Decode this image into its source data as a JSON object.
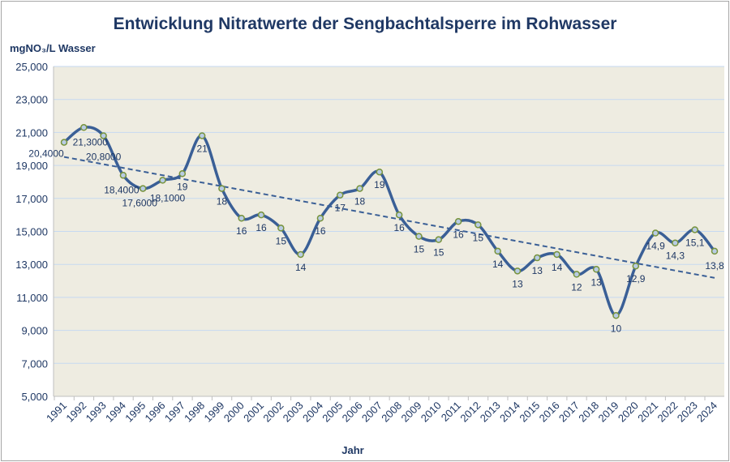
{
  "chart_data": {
    "type": "line",
    "title": "Entwicklung Nitratwerte der Sengbachtalsperre im Rohwasser",
    "ylabel": "mgNO₃/L Wasser",
    "xlabel": "Jahr",
    "ylim": [
      5000,
      25000
    ],
    "yticks": [
      "5,000",
      "7,000",
      "9,000",
      "11,000",
      "13,000",
      "15,000",
      "17,000",
      "19,000",
      "21,000",
      "23,000",
      "25,000"
    ],
    "grid": true,
    "smoothed": true,
    "trendline": "linear",
    "x": [
      "1991",
      "1992",
      "1993",
      "1994",
      "1995",
      "1996",
      "1997",
      "1998",
      "1999",
      "2000",
      "2001",
      "2002",
      "2003",
      "2004",
      "2005",
      "2006",
      "2007",
      "2008",
      "2009",
      "2010",
      "2011",
      "2012",
      "2013",
      "2014",
      "2015",
      "2016",
      "2017",
      "2018",
      "2019",
      "2020",
      "2021",
      "2022",
      "2023",
      "2024"
    ],
    "series": [
      {
        "values": [
          20400,
          21300,
          20800,
          18400,
          17600,
          18100,
          18500,
          20800,
          17600,
          15800,
          16000,
          15200,
          13600,
          15800,
          17200,
          17600,
          18600,
          16000,
          14700,
          14500,
          15600,
          15400,
          13800,
          12600,
          13400,
          13600,
          12400,
          12700,
          9900,
          12900,
          14900,
          14300,
          15100,
          13800
        ],
        "labels": [
          "20,4000",
          "21,3000",
          "20,8000",
          "18,4000",
          "17,6000",
          "18,1000",
          "19",
          "21",
          "18",
          "16",
          "16",
          "15",
          "14",
          "16",
          "17",
          "18",
          "19",
          "16",
          "15",
          "15",
          "16",
          "15",
          "14",
          "13",
          "13",
          "14",
          "12",
          "13",
          "10",
          "12,9",
          "14,9",
          "14,3",
          "15,1",
          "13,8"
        ]
      }
    ],
    "colors": {
      "line": "#3A5F96",
      "marker_fill": "#B8CCE4",
      "marker_stroke": "#77933C",
      "plot_bg": "#EEECE1",
      "grid": "#C6D9F1",
      "title": "#1F3864"
    }
  }
}
